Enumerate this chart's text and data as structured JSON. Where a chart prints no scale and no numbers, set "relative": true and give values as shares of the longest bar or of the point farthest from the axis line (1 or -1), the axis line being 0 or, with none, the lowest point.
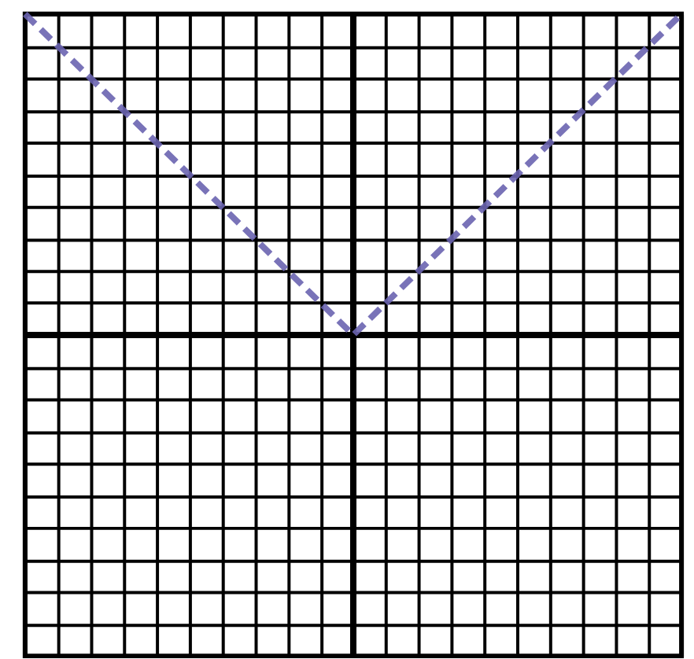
{
  "chart_data": {
    "type": "line",
    "relative": true,
    "categories": [
      null,
      null,
      null
    ],
    "grid": true,
    "tick_labels": false,
    "series": [
      {
        "color": "#6a64b0",
        "values": [
          1,
          0,
          1
        ],
        "line_style": "dashed"
      }
    ]
  }
}
